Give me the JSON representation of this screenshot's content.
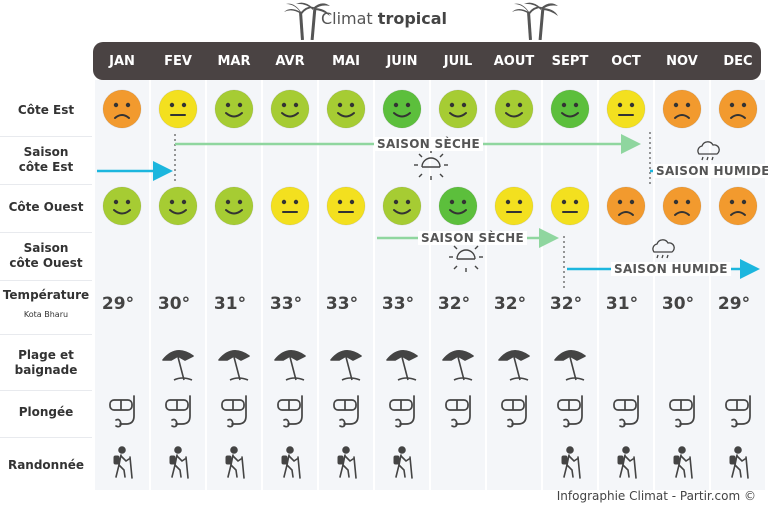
{
  "title": {
    "prefix": "Climat",
    "strong": "tropical"
  },
  "months": [
    "JAN",
    "FEV",
    "MAR",
    "AVR",
    "MAI",
    "JUIN",
    "JUIL",
    "AOUT",
    "SEPT",
    "OCT",
    "NOV",
    "DEC"
  ],
  "rows": {
    "cote_est": "Côte Est",
    "saison_est_1": "Saison",
    "saison_est_2": "côte Est",
    "cote_ouest": "Côte Ouest",
    "saison_ouest_1": "Saison",
    "saison_ouest_2": "côte Ouest",
    "temperature": "Température",
    "temperature_sub": "Kota Bharu",
    "plage_1": "Plage et",
    "plage_2": "baignade",
    "plongee": "Plongée",
    "randonnee": "Randonnée"
  },
  "cote_est_ratings": [
    "bad",
    "neutral",
    "good",
    "good",
    "good",
    "great",
    "good",
    "good",
    "great",
    "neutral",
    "bad",
    "bad"
  ],
  "cote_ouest_ratings": [
    "good",
    "good",
    "good",
    "neutral",
    "neutral",
    "good",
    "great",
    "neutral",
    "neutral",
    "bad",
    "bad",
    "bad"
  ],
  "seasons": {
    "est_dry": "SAISON SÈCHE",
    "est_wet": "SAISON HUMIDE",
    "ouest_dry": "SAISON SÈCHE",
    "ouest_wet": "SAISON HUMIDE"
  },
  "temperatures": [
    "29°",
    "30°",
    "31°",
    "33°",
    "33°",
    "33°",
    "32°",
    "32°",
    "32°",
    "31°",
    "30°",
    "29°"
  ],
  "beach": [
    false,
    true,
    true,
    true,
    true,
    true,
    true,
    true,
    true,
    false,
    false,
    false
  ],
  "diving": [
    true,
    true,
    true,
    true,
    true,
    true,
    true,
    true,
    true,
    true,
    true,
    true
  ],
  "hiking": [
    true,
    true,
    true,
    true,
    true,
    true,
    false,
    false,
    true,
    true,
    true,
    true
  ],
  "colors": {
    "header": "#4a4343",
    "great": "#5cbf3c",
    "good": "#a6cc33",
    "neutral": "#f3e01f",
    "bad": "#f29a2e",
    "dry_line": "#8fd69f",
    "wet_line": "#1cb6de"
  },
  "icons": {
    "beach": "beach-umbrella-icon",
    "diving": "snorkel-mask-icon",
    "hiking": "hiker-icon"
  },
  "footer": "Infographie Climat - Partir.com ©"
}
